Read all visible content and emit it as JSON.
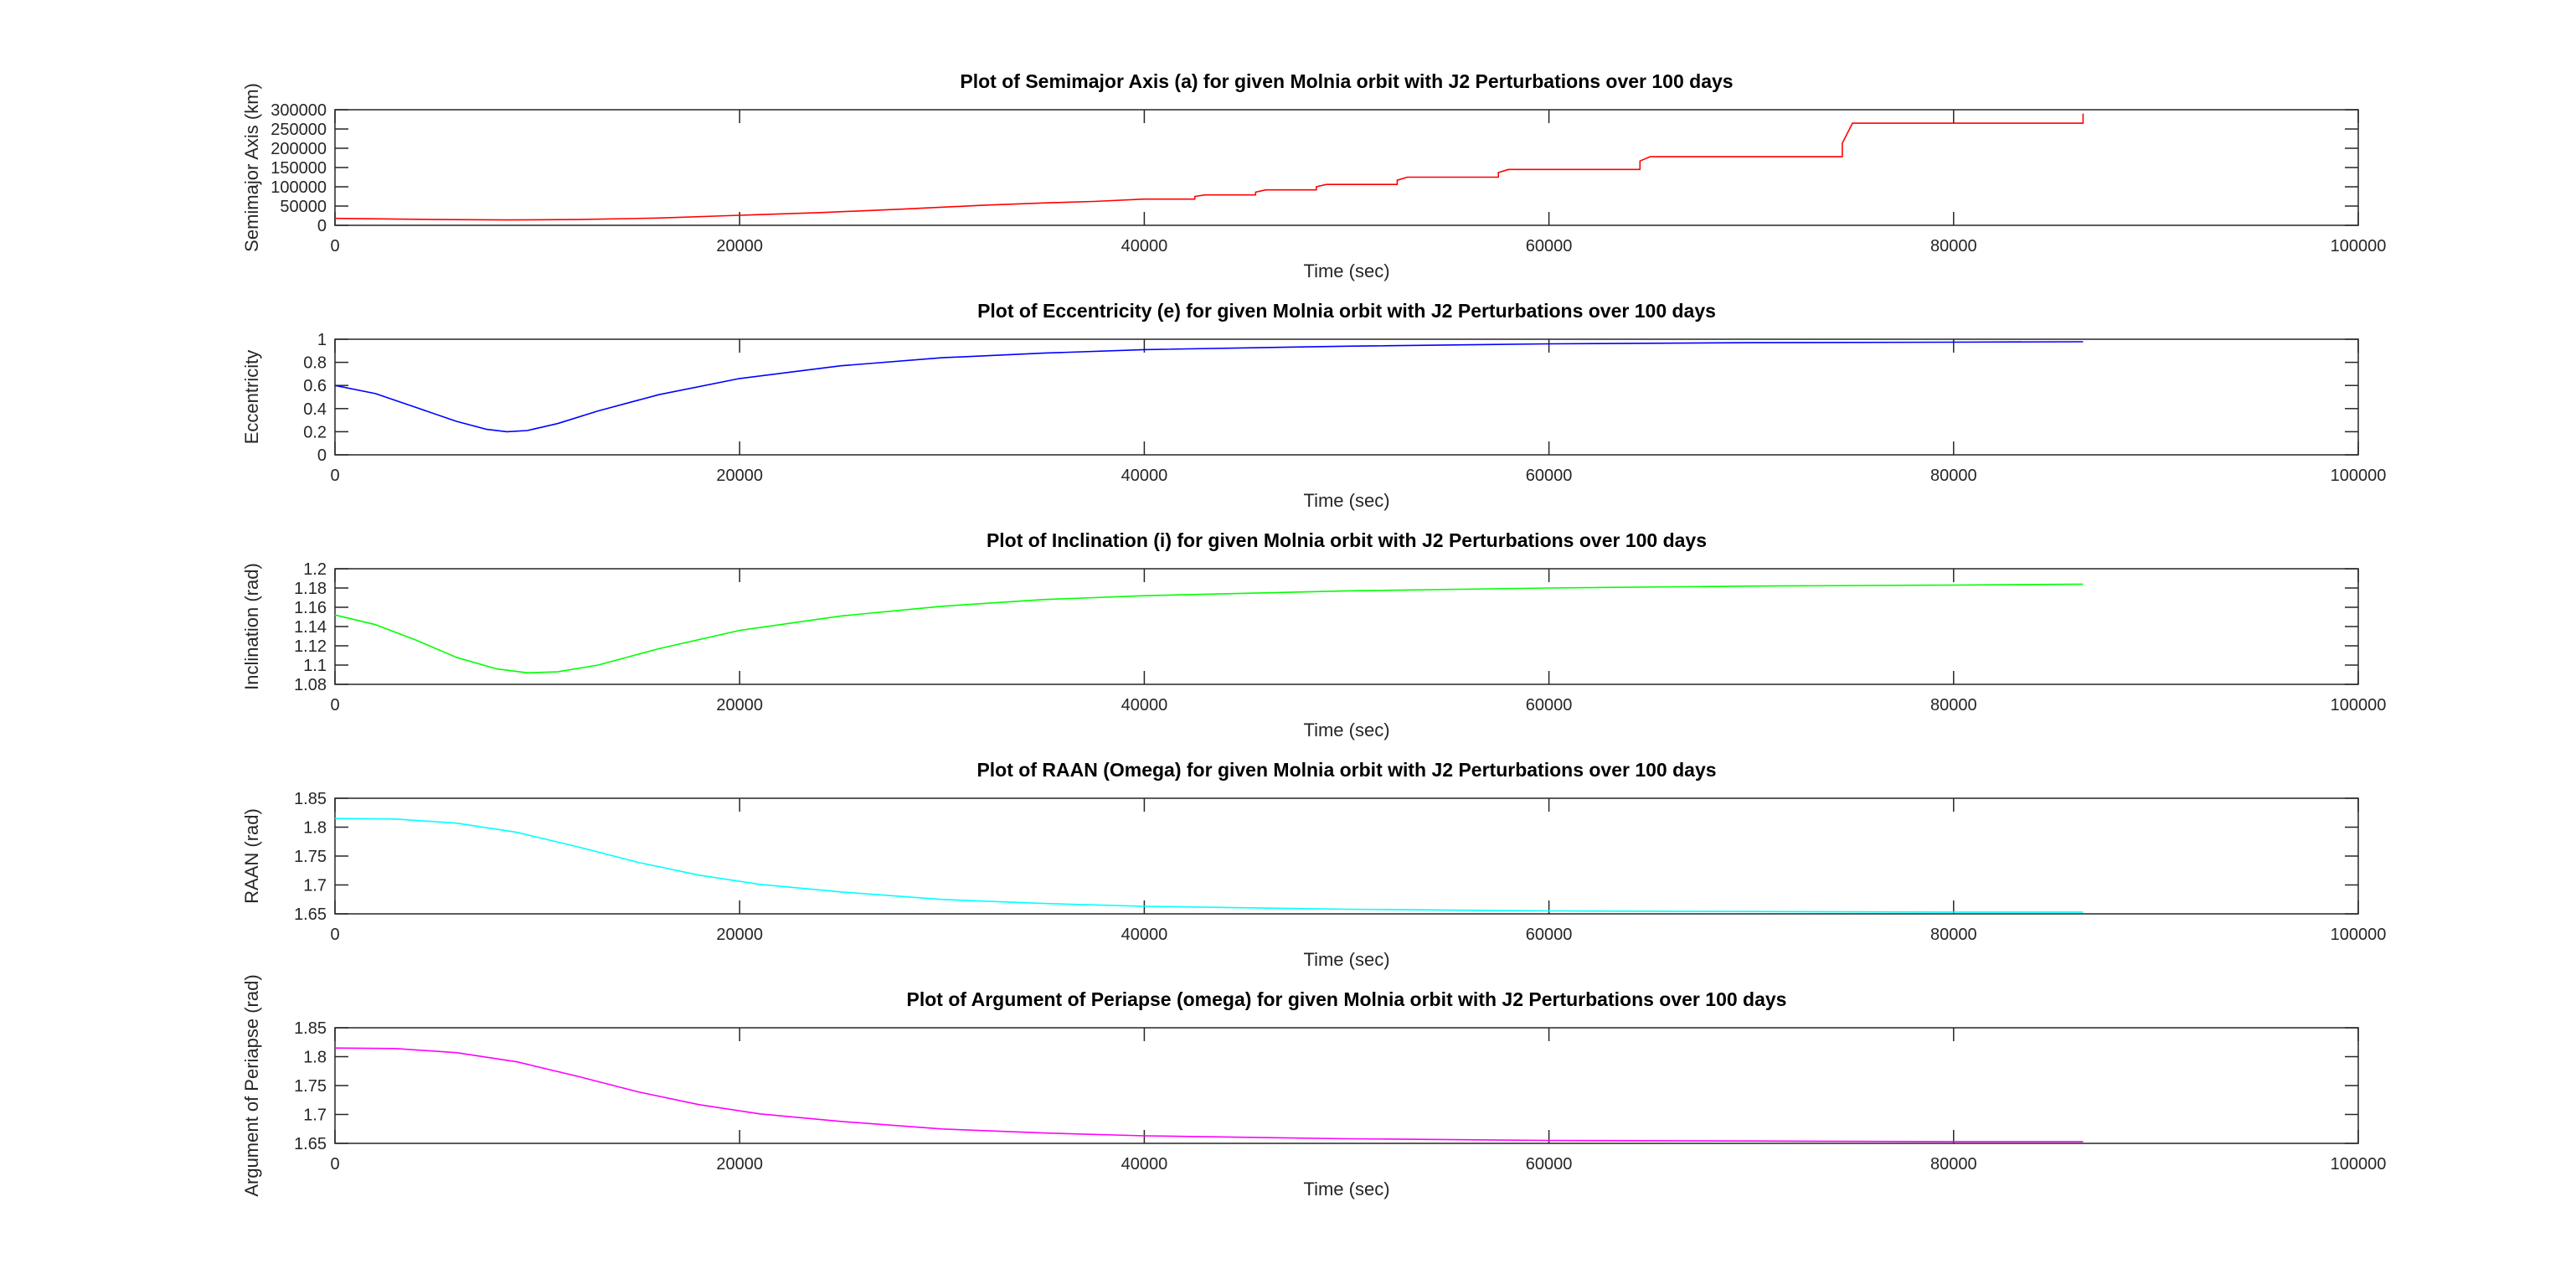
{
  "chart_data": [
    {
      "type": "line",
      "title": "Plot of Semimajor Axis (a) for given Molnia orbit with J2 Perturbations over 100 days",
      "xlabel": "Time (sec)",
      "ylabel": "Semimajor Axis (km)",
      "xlim": [
        0,
        100000
      ],
      "ylim": [
        0,
        300000
      ],
      "xticks": [
        0,
        20000,
        40000,
        60000,
        80000,
        100000
      ],
      "yticks": [
        0,
        50000,
        100000,
        150000,
        200000,
        250000,
        300000
      ],
      "grid": false,
      "series": [
        {
          "color": "#ff0000",
          "shape": "steps",
          "x": [
            0,
            5000,
            8500,
            12000,
            16000,
            20000,
            24000,
            28000,
            32000,
            35000,
            37500,
            40000,
            42500,
            43000,
            45500,
            46000,
            48500,
            49000,
            52500,
            53000,
            57500,
            58000,
            64500,
            65000,
            74500,
            75000,
            86400
          ],
          "y": [
            18000,
            15000,
            14000,
            15000,
            19000,
            26000,
            33000,
            42000,
            52000,
            58000,
            62000,
            68000,
            75000,
            79000,
            86000,
            92000,
            100000,
            106000,
            117000,
            125000,
            137000,
            145000,
            167000,
            178000,
            213000,
            265000,
            290000
          ]
        }
      ]
    },
    {
      "type": "line",
      "title": "Plot of Eccentricity (e) for given Molnia orbit with J2 Perturbations over 100 days",
      "xlabel": "Time (sec)",
      "ylabel": "Eccentricity",
      "xlim": [
        0,
        100000
      ],
      "ylim": [
        0,
        1
      ],
      "xticks": [
        0,
        20000,
        40000,
        60000,
        80000,
        100000
      ],
      "yticks": [
        0,
        0.2,
        0.4,
        0.6,
        0.8,
        1
      ],
      "yticklabels": [
        "0",
        "0.2",
        "0.4",
        "0.6",
        "0.8",
        "1"
      ],
      "grid": false,
      "series": [
        {
          "color": "#0000ff",
          "x": [
            0,
            2000,
            4000,
            6000,
            7500,
            8500,
            9500,
            11000,
            13000,
            16000,
            20000,
            25000,
            30000,
            35000,
            40000,
            50000,
            60000,
            70000,
            80000,
            86400
          ],
          "y": [
            0.6,
            0.53,
            0.41,
            0.29,
            0.22,
            0.2,
            0.21,
            0.27,
            0.38,
            0.52,
            0.66,
            0.77,
            0.84,
            0.88,
            0.91,
            0.94,
            0.96,
            0.97,
            0.975,
            0.978
          ]
        }
      ]
    },
    {
      "type": "line",
      "title": "Plot of Inclination (i) for given Molnia orbit with J2 Perturbations over 100 days",
      "xlabel": "Time (sec)",
      "ylabel": "Inclination (rad)",
      "xlim": [
        0,
        100000
      ],
      "ylim": [
        1.08,
        1.2
      ],
      "xticks": [
        0,
        20000,
        40000,
        60000,
        80000,
        100000
      ],
      "yticks": [
        1.08,
        1.1,
        1.12,
        1.14,
        1.16,
        1.18,
        1.2
      ],
      "yticklabels": [
        "1.08",
        "1.1",
        "1.12",
        "1.14",
        "1.16",
        "1.18",
        "1.2"
      ],
      "grid": false,
      "series": [
        {
          "color": "#00ff00",
          "x": [
            0,
            2000,
            4000,
            6000,
            8000,
            9500,
            11000,
            13000,
            16000,
            20000,
            25000,
            30000,
            35000,
            40000,
            50000,
            60000,
            70000,
            80000,
            86400
          ],
          "y": [
            1.152,
            1.142,
            1.126,
            1.108,
            1.096,
            1.092,
            1.093,
            1.1,
            1.117,
            1.136,
            1.151,
            1.161,
            1.168,
            1.172,
            1.177,
            1.18,
            1.182,
            1.183,
            1.184
          ]
        }
      ]
    },
    {
      "type": "line",
      "title": "Plot of RAAN (Omega) for given Molnia orbit with J2 Perturbations over 100 days",
      "xlabel": "Time (sec)",
      "ylabel": "RAAN (rad)",
      "xlim": [
        0,
        100000
      ],
      "ylim": [
        1.65,
        1.85
      ],
      "xticks": [
        0,
        20000,
        40000,
        60000,
        80000,
        100000
      ],
      "yticks": [
        1.65,
        1.7,
        1.75,
        1.8,
        1.85
      ],
      "yticklabels": [
        "1.65",
        "1.7",
        "1.75",
        "1.8",
        "1.85"
      ],
      "grid": false,
      "series": [
        {
          "color": "#00ffff",
          "x": [
            0,
            3000,
            6000,
            9000,
            12000,
            15000,
            18000,
            21000,
            25000,
            30000,
            35000,
            40000,
            50000,
            60000,
            70000,
            80000,
            86400
          ],
          "y": [
            1.815,
            1.814,
            1.807,
            1.791,
            1.766,
            1.739,
            1.717,
            1.701,
            1.688,
            1.675,
            1.668,
            1.663,
            1.658,
            1.655,
            1.654,
            1.653,
            1.653
          ]
        }
      ]
    },
    {
      "type": "line",
      "title": "Plot of Argument of Periapse (omega) for given Molnia orbit with J2 Perturbations over 100 days",
      "xlabel": "Time (sec)",
      "ylabel": "Argument of Periapse (rad)",
      "xlim": [
        0,
        100000
      ],
      "ylim": [
        1.65,
        1.85
      ],
      "xticks": [
        0,
        20000,
        40000,
        60000,
        80000,
        100000
      ],
      "yticks": [
        1.65,
        1.7,
        1.75,
        1.8,
        1.85
      ],
      "yticklabels": [
        "1.65",
        "1.7",
        "1.75",
        "1.8",
        "1.85"
      ],
      "grid": false,
      "series": [
        {
          "color": "#ff00ff",
          "x": [
            0,
            3000,
            6000,
            9000,
            12000,
            15000,
            18000,
            21000,
            25000,
            30000,
            35000,
            40000,
            50000,
            60000,
            70000,
            80000,
            86400
          ],
          "y": [
            1.815,
            1.814,
            1.807,
            1.791,
            1.766,
            1.739,
            1.717,
            1.701,
            1.688,
            1.675,
            1.668,
            1.663,
            1.658,
            1.655,
            1.654,
            1.653,
            1.653
          ]
        }
      ]
    }
  ]
}
